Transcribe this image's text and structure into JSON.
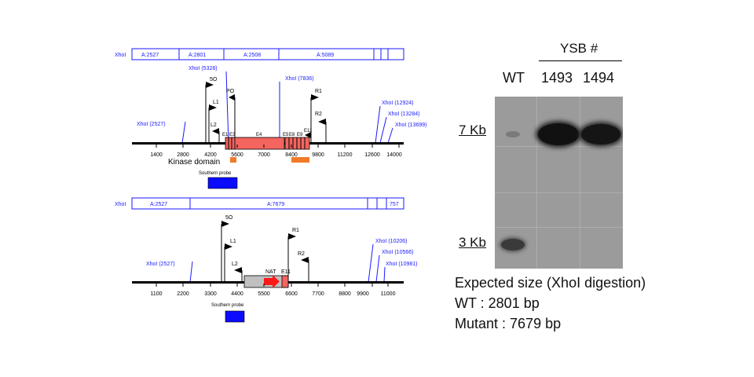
{
  "wt_map": {
    "segment_track": {
      "label": "XhoI",
      "segments": [
        "A:2527",
        "A:2801",
        "A:2508",
        "A:5089"
      ]
    },
    "sites": [
      {
        "label": "XhoI (2527)"
      },
      {
        "label": "XhoI (5328)"
      },
      {
        "label": "XhoI (7836)"
      },
      {
        "label": "XhoI (12924)"
      },
      {
        "label": "XhoI (13284)"
      },
      {
        "label": "XhoI (13699)"
      }
    ],
    "primers": [
      "5O",
      "L1",
      "PO",
      "L2",
      "R1",
      "R2",
      "E11"
    ],
    "exons": [
      "E1",
      "E3",
      "E4",
      "E5",
      "E8",
      "E9"
    ],
    "ruler": [
      "1400",
      "2800",
      "4200",
      "5600",
      "7000",
      "8400",
      "9800",
      "11200",
      "12600",
      "14000"
    ],
    "kinase_domain_label": "Kinase domain",
    "southern_probe_label": "Southern probe"
  },
  "mut_map": {
    "segment_track": {
      "label": "XhoI",
      "segments": [
        "A:2527",
        "A:7679",
        "757"
      ]
    },
    "sites": [
      {
        "label": "XhoI (2527)"
      },
      {
        "label": "XhoI (10206)"
      },
      {
        "label": "XhoI (10566)"
      },
      {
        "label": "XhoI (10981)"
      }
    ],
    "primers": [
      "5O",
      "L1",
      "L2",
      "R1",
      "R2"
    ],
    "nat_label": "NAT",
    "e11_label": "E11",
    "ruler": [
      "1100",
      "2200",
      "3300",
      "4400",
      "5500",
      "6600",
      "7700",
      "8800",
      "9900",
      "11000"
    ],
    "southern_probe_label": "Southern probe"
  },
  "blot": {
    "group_label": "YSB #",
    "lanes": [
      "WT",
      "1493",
      "1494"
    ],
    "markers": [
      "7 Kb",
      "3 Kb"
    ]
  },
  "expected": {
    "line1": "Expected size (XhoI digestion)",
    "line2": "WT : 2801 bp",
    "line3": "Mutant : 7679 bp"
  },
  "colors": {
    "site_blue": "#1a1aff",
    "exon_fill": "#f4655f",
    "kinase_orange": "#f07a28",
    "probe_blue": "#0b0bff",
    "nat_gray": "#c0c0c0",
    "nat_red": "#ff1a1a"
  }
}
